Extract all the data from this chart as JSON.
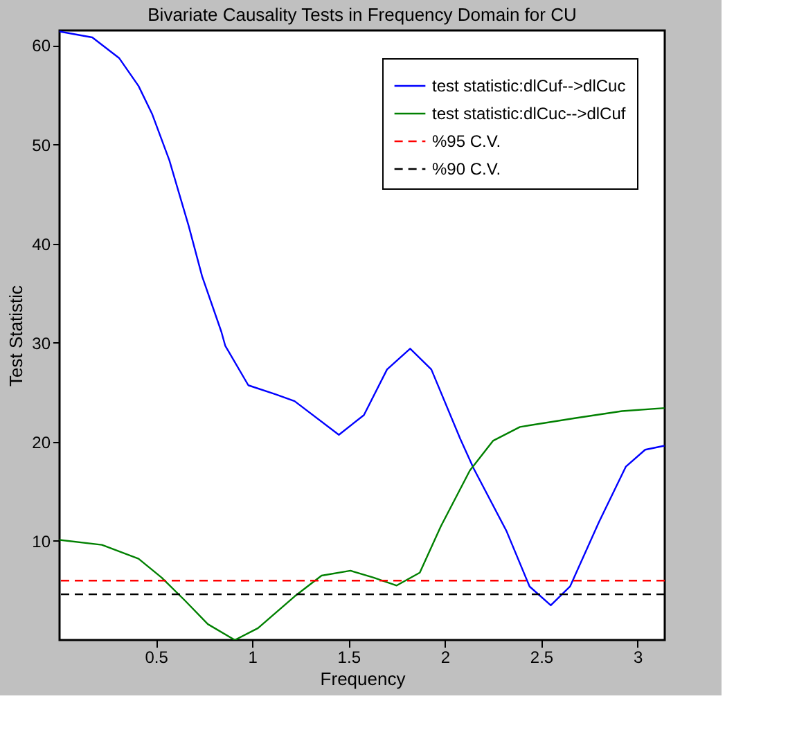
{
  "chart_data": {
    "type": "line",
    "title": "Bivariate Causality Tests in Frequency Domain for CU",
    "xlabel": "Frequency",
    "ylabel": "Test Statistic",
    "xlim": [
      0,
      3.1416
    ],
    "ylim": [
      0,
      61.5
    ],
    "xticks": [
      0.5,
      1,
      1.5,
      2,
      2.5,
      3
    ],
    "yticks": [
      10,
      20,
      30,
      40,
      50,
      60
    ],
    "grid": false,
    "legend": "top right",
    "line_style": "solid",
    "marker": "none",
    "series": [
      {
        "name": "test statistic:dlCuf-->dlCuc",
        "color": "#0000ff",
        "x": [
          0,
          0.17,
          0.31,
          0.41,
          0.48,
          0.57,
          0.67,
          0.74,
          0.84,
          0.86,
          0.98,
          1.12,
          1.22,
          1.45,
          1.58,
          1.7,
          1.82,
          1.93,
          2.08,
          2.15,
          2.32,
          2.44,
          2.55,
          2.65,
          2.8,
          2.94,
          3.04,
          3.14
        ],
        "values": [
          61.4,
          60.8,
          58.7,
          55.9,
          53.1,
          48.4,
          41.8,
          36.7,
          31.1,
          29.7,
          25.7,
          24.8,
          24.1,
          20.7,
          22.7,
          27.3,
          29.4,
          27.3,
          20.3,
          17.3,
          11.0,
          5.4,
          3.5,
          5.4,
          11.9,
          17.5,
          19.2,
          19.6
        ]
      },
      {
        "name": "test statistic:dlCuc-->dlCuf",
        "color": "#008000",
        "x": [
          0,
          0.22,
          0.41,
          0.53,
          0.65,
          0.77,
          0.91,
          1.03,
          1.22,
          1.36,
          1.51,
          1.63,
          1.75,
          1.87,
          1.98,
          2.13,
          2.25,
          2.39,
          2.68,
          2.92,
          3.14
        ],
        "values": [
          10.1,
          9.6,
          8.2,
          6.3,
          4.0,
          1.6,
          0.0,
          1.2,
          4.4,
          6.5,
          7.0,
          6.3,
          5.5,
          6.8,
          11.5,
          17.1,
          20.1,
          21.5,
          22.4,
          23.1,
          23.4
        ]
      }
    ],
    "ref_lines": [
      {
        "axis": "y",
        "value": 5.99,
        "label": "%95 C.V.",
        "color": "#ff0000",
        "line_style": "dashed"
      },
      {
        "axis": "y",
        "value": 4.61,
        "label": "%90 C.V.",
        "color": "#000000",
        "line_style": "dashed"
      }
    ]
  }
}
